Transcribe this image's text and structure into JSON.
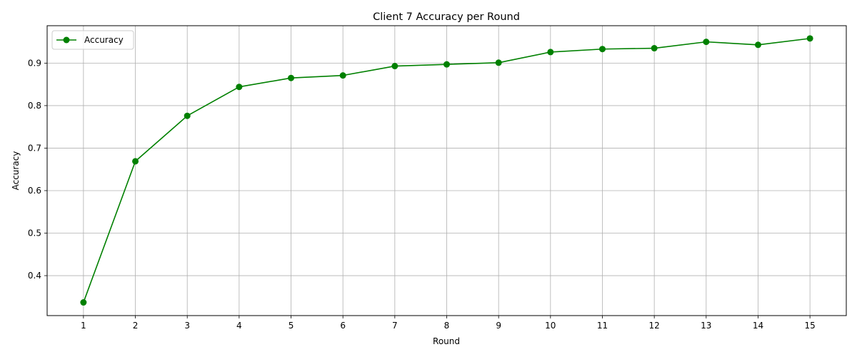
{
  "chart_data": {
    "type": "line",
    "title": "Client 7 Accuracy per Round",
    "xlabel": "Round",
    "ylabel": "Accuracy",
    "x": [
      1,
      2,
      3,
      4,
      5,
      6,
      7,
      8,
      9,
      10,
      11,
      12,
      13,
      14,
      15
    ],
    "x_ticks": [
      "1",
      "2",
      "3",
      "4",
      "5",
      "6",
      "7",
      "8",
      "9",
      "10",
      "11",
      "12",
      "13",
      "14",
      "15"
    ],
    "y_ticks": [
      "0.4",
      "0.5",
      "0.6",
      "0.7",
      "0.8",
      "0.9"
    ],
    "ylim": [
      0.306,
      0.988
    ],
    "xlim": [
      0.3,
      15.7
    ],
    "grid": true,
    "legend_position": "top-left",
    "series": [
      {
        "name": "Accuracy",
        "color": "#008000",
        "marker": "circle",
        "values": [
          0.337,
          0.669,
          0.776,
          0.844,
          0.865,
          0.871,
          0.893,
          0.897,
          0.901,
          0.926,
          0.933,
          0.935,
          0.95,
          0.943,
          0.958
        ]
      }
    ]
  }
}
